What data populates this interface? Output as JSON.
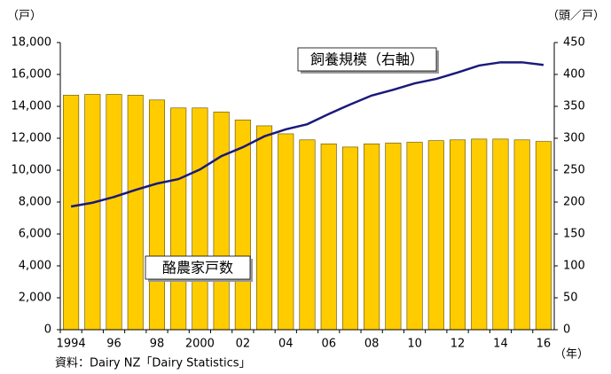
{
  "chart_data": {
    "type": "bar_line",
    "y_label": "（戸）",
    "y2_label": "（頭／戸）",
    "x_label": "（年）",
    "source": "資料：Dairy NZ「Dairy Statistics」",
    "categories": [
      "1994",
      null,
      "96",
      null,
      "98",
      null,
      "2000",
      null,
      "02",
      null,
      "04",
      null,
      "06",
      null,
      "08",
      null,
      "10",
      null,
      "12",
      null,
      "14",
      null,
      "16"
    ],
    "series": [
      {
        "name": "酪農家戸数",
        "type": "bar",
        "color": "#FFCC00",
        "axis": "y",
        "values": [
          14700,
          14750,
          14750,
          14700,
          14400,
          13900,
          13900,
          13650,
          13150,
          12780,
          12280,
          11900,
          11650,
          11450,
          11650,
          11700,
          11750,
          11850,
          11900,
          11950,
          11950,
          11900,
          11800
        ]
      },
      {
        "name": "飼養規模（右軸）",
        "type": "line",
        "color": "#1A1A7A",
        "axis": "y2",
        "values": [
          193,
          199,
          208,
          219,
          229,
          236,
          251,
          272,
          286,
          303,
          314,
          322,
          338,
          353,
          367,
          376,
          386,
          393,
          403,
          414,
          419,
          419,
          415
        ]
      }
    ],
    "ylim": [
      0,
      18000
    ],
    "yticks": [
      0,
      {
        "value": 2000,
        "label": "2,000"
      },
      {
        "value": 4000,
        "label": "4,000"
      },
      {
        "value": 6000,
        "label": "6,000"
      },
      {
        "value": 8000,
        "label": "8,000"
      },
      {
        "value": 10000,
        "label": "10,000"
      },
      {
        "value": 12000,
        "label": "12,000"
      },
      {
        "value": 14000,
        "label": "14,000"
      },
      {
        "value": 16000,
        "label": "16,000"
      },
      {
        "value": 18000,
        "label": "18,000"
      }
    ],
    "y2lim": [
      0,
      450
    ],
    "y2ticks": [
      0,
      50,
      100,
      150,
      200,
      250,
      300,
      350,
      400,
      450
    ]
  }
}
